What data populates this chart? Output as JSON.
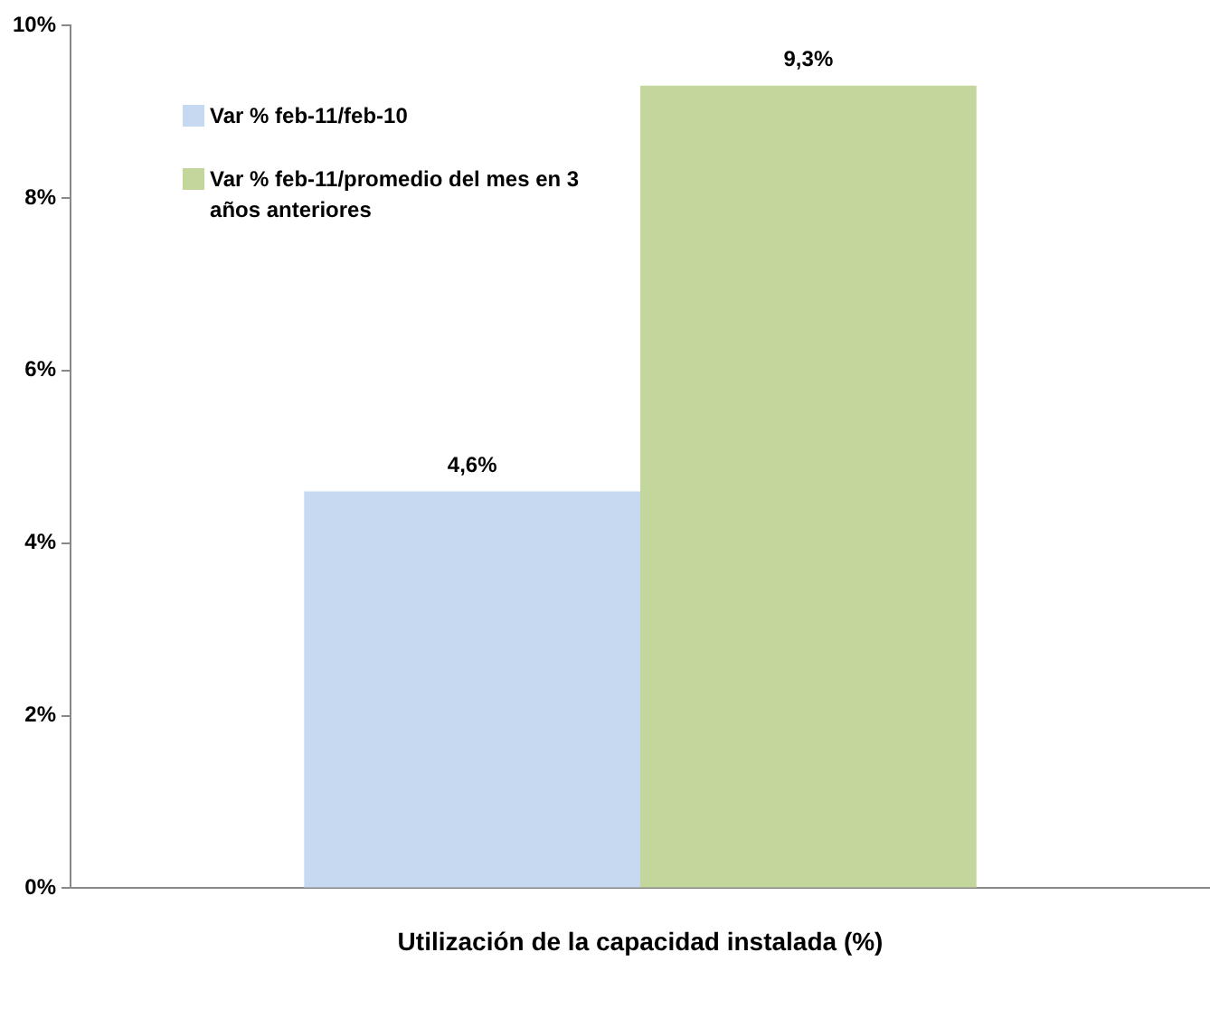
{
  "chart_data": {
    "type": "bar",
    "categories": [
      "Utilización de la capacidad instalada (%)"
    ],
    "series": [
      {
        "name": "Var % feb-11/feb-10",
        "color": "#c6d9f0",
        "values": [
          4.6
        ],
        "value_labels": [
          "4,6%"
        ]
      },
      {
        "name": "Var % feb-11/promedio del mes en 3 años anteriores",
        "color": "#c3d69b",
        "values": [
          9.3
        ],
        "value_labels": [
          "9,3%"
        ]
      }
    ],
    "ylim": [
      0,
      10
    ],
    "yticks": [
      {
        "value": 0,
        "label": "0%"
      },
      {
        "value": 2,
        "label": "2%"
      },
      {
        "value": 4,
        "label": "4%"
      },
      {
        "value": 6,
        "label": "6%"
      },
      {
        "value": 8,
        "label": "8%"
      },
      {
        "value": 10,
        "label": "10%"
      }
    ],
    "grid": false,
    "legend": "top left"
  }
}
